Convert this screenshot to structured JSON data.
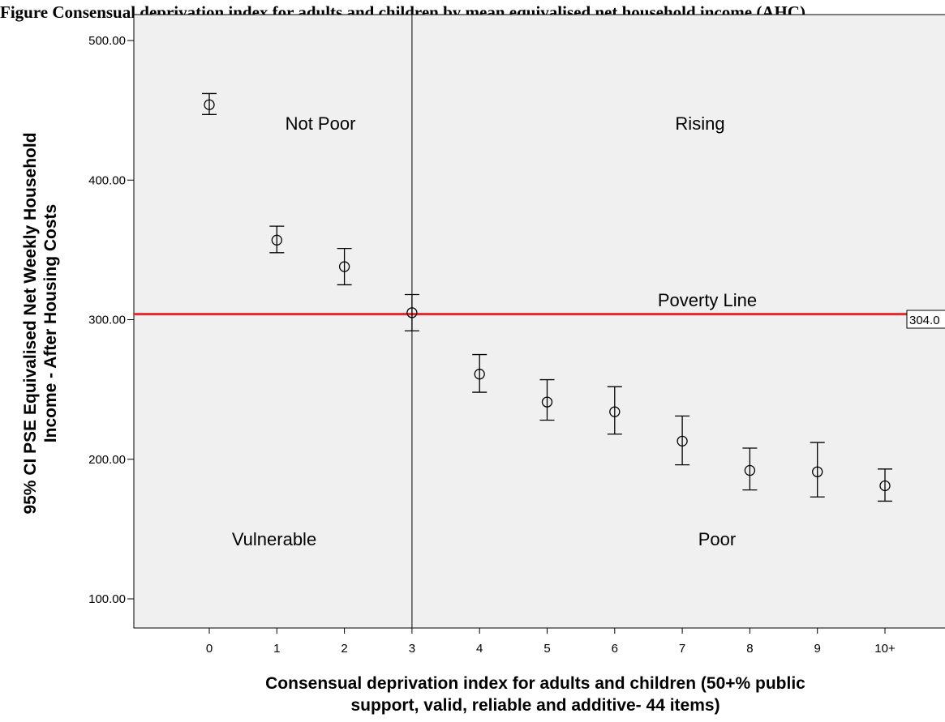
{
  "figure_caption": "Figure                Consensual deprivation index for adults and children by mean equivalised net household income (AHC)",
  "chart_data": {
    "type": "scatter",
    "xlabel_lines": [
      "Consensual deprivation index for adults and children (50+% public",
      "support, valid, reliable and additive- 44 items)"
    ],
    "ylabel_lines": [
      "95% CI PSE Equivalised Net Weekly Household",
      "Income - After Housing Costs"
    ],
    "categories": [
      "0",
      "1",
      "2",
      "3",
      "4",
      "5",
      "6",
      "7",
      "8",
      "9",
      "10+"
    ],
    "y_ticks": [
      "100.00",
      "200.00",
      "300.00",
      "400.00",
      "500.00"
    ],
    "ylim": [
      75,
      520
    ],
    "means": [
      454,
      357,
      338,
      305,
      261,
      241,
      234,
      213,
      192,
      191,
      181
    ],
    "ci_lower": [
      447,
      348,
      325,
      292,
      248,
      228,
      218,
      196,
      178,
      173,
      170
    ],
    "ci_upper": [
      462,
      367,
      351,
      318,
      275,
      257,
      252,
      231,
      208,
      212,
      193
    ],
    "poverty_line": {
      "value": 304,
      "label": "Poverty Line",
      "value_label": "304.0",
      "color": "#e8282b"
    },
    "threshold_category": "3",
    "regions": {
      "top_left": "Not Poor",
      "top_right": "Rising",
      "bottom_left": "Vulnerable",
      "bottom_right": "Poor"
    },
    "plot_background": "#f0f0f0"
  }
}
